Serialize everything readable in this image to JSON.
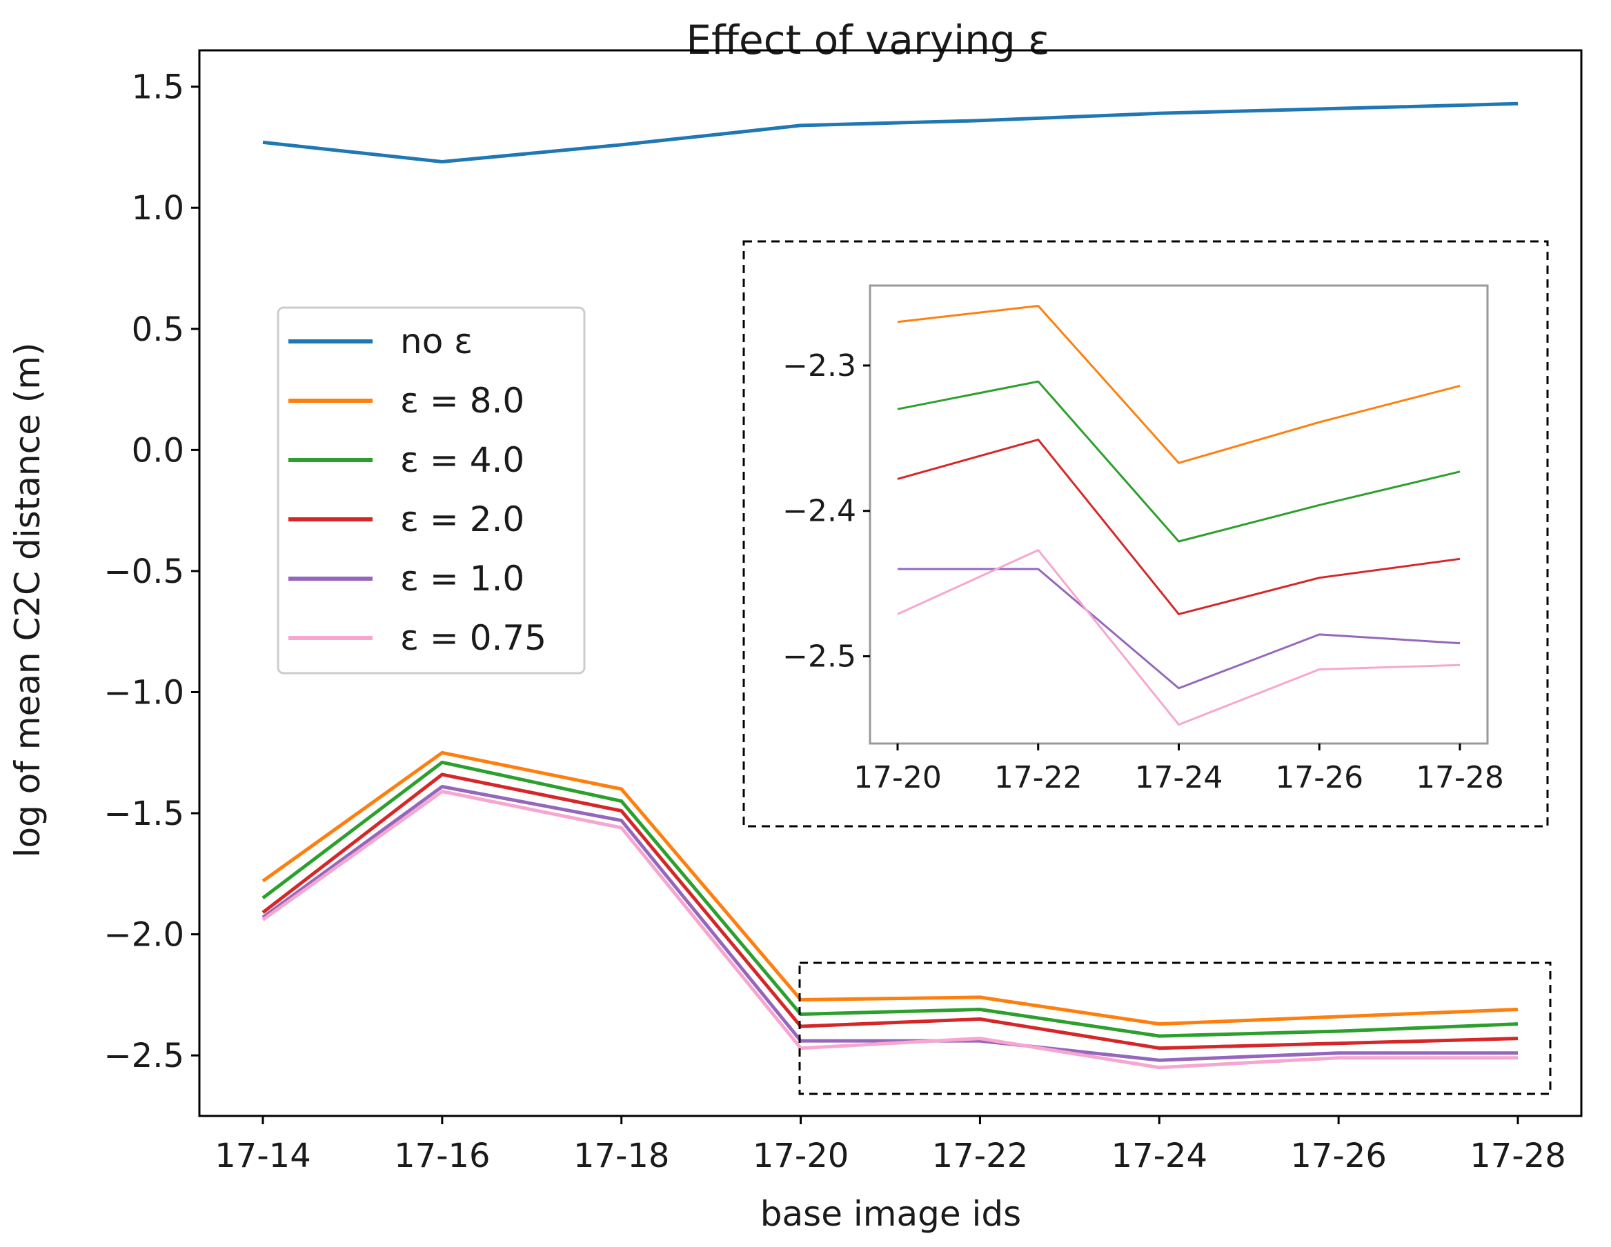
{
  "chart_data": [
    {
      "type": "line",
      "title": "Effect of varying ε",
      "xlabel": "base image ids",
      "ylabel": "log of mean C2C distance (m)",
      "categories": [
        "17-14",
        "17-16",
        "17-18",
        "17-20",
        "17-22",
        "17-24",
        "17-26",
        "17-28"
      ],
      "ylim": [
        -2.75,
        1.65
      ],
      "yticks": [
        1.5,
        1.0,
        0.5,
        0.0,
        -0.5,
        -1.0,
        -1.5,
        -2.0,
        -2.5
      ],
      "ytick_labels": [
        "1.5",
        "1.0",
        "0.5",
        "0.0",
        "−0.5",
        "−1.0",
        "−1.5",
        "−2.0",
        "−2.5"
      ],
      "grid": false,
      "legend_position": "center-left",
      "series": [
        {
          "name": "no ε",
          "color": "#1f77b4",
          "values": [
            1.27,
            1.19,
            1.26,
            1.34,
            1.36,
            1.39,
            1.41,
            1.43
          ]
        },
        {
          "name": "ε = 8.0",
          "color": "#ff7f0e",
          "values": [
            -1.78,
            -1.25,
            -1.4,
            -2.27,
            -2.26,
            -2.37,
            -2.34,
            -2.31
          ]
        },
        {
          "name": "ε = 4.0",
          "color": "#2ca02c",
          "values": [
            -1.85,
            -1.29,
            -1.45,
            -2.33,
            -2.31,
            -2.42,
            -2.4,
            -2.37
          ]
        },
        {
          "name": "ε = 2.0",
          "color": "#d62728",
          "values": [
            -1.91,
            -1.34,
            -1.49,
            -2.38,
            -2.35,
            -2.47,
            -2.45,
            -2.43
          ]
        },
        {
          "name": "ε = 1.0",
          "color": "#9467bd",
          "values": [
            -1.93,
            -1.39,
            -1.53,
            -2.44,
            -2.44,
            -2.52,
            -2.49,
            -2.49
          ]
        },
        {
          "name": "ε = 0.75",
          "color": "#f7a7cf",
          "values": [
            -1.94,
            -1.41,
            -1.56,
            -2.47,
            -2.43,
            -2.55,
            -2.51,
            -2.51
          ]
        }
      ]
    },
    {
      "type": "line",
      "title": "",
      "categories": [
        "17-20",
        "17-22",
        "17-24",
        "17-26",
        "17-28"
      ],
      "ylim": [
        -2.56,
        -2.245
      ],
      "yticks": [
        -2.3,
        -2.4,
        -2.5
      ],
      "ytick_labels": [
        "−2.3",
        "−2.4",
        "−2.5"
      ],
      "series": [
        {
          "color": "#ff7f0e",
          "values": [
            -2.27,
            -2.259,
            -2.367,
            -2.339,
            -2.314
          ]
        },
        {
          "color": "#2ca02c",
          "values": [
            -2.33,
            -2.311,
            -2.421,
            -2.396,
            -2.373
          ]
        },
        {
          "color": "#d62728",
          "values": [
            -2.378,
            -2.351,
            -2.471,
            -2.446,
            -2.433
          ]
        },
        {
          "color": "#9467bd",
          "values": [
            -2.44,
            -2.44,
            -2.522,
            -2.485,
            -2.491
          ]
        },
        {
          "color": "#f7a7cf",
          "values": [
            -2.471,
            -2.427,
            -2.547,
            -2.509,
            -2.506
          ]
        }
      ]
    }
  ]
}
